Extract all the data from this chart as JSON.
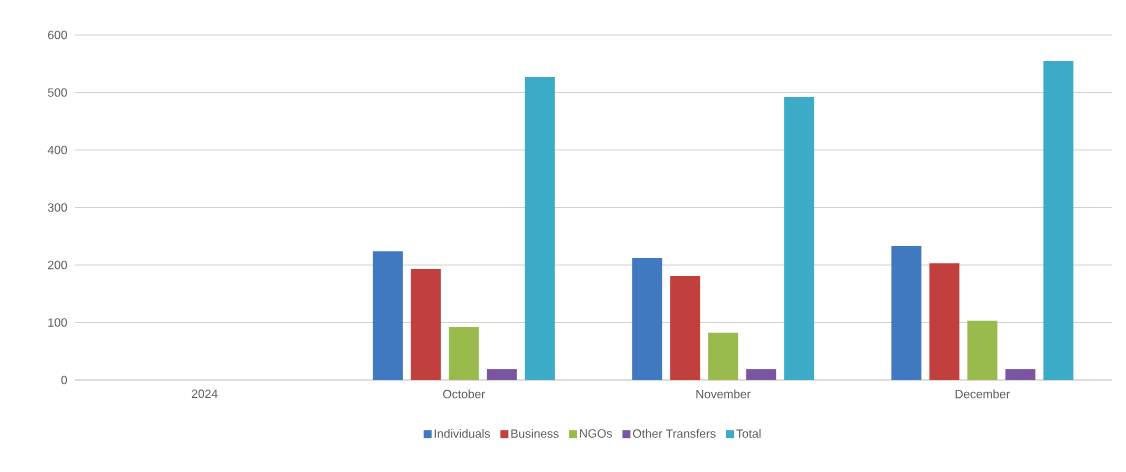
{
  "chart_data": {
    "type": "bar",
    "categories": [
      "2024",
      "October",
      "November",
      "December"
    ],
    "series": [
      {
        "name": "Individuals",
        "color": "#4079c0",
        "values": [
          null,
          224,
          212,
          233
        ]
      },
      {
        "name": "Business",
        "color": "#c13f3d",
        "values": [
          null,
          193,
          181,
          203
        ]
      },
      {
        "name": "NGOs",
        "color": "#99ba4c",
        "values": [
          null,
          92,
          82,
          103
        ]
      },
      {
        "name": "Other Transfers",
        "color": "#7b55a2",
        "values": [
          null,
          19,
          19,
          19
        ]
      },
      {
        "name": "Total",
        "color": "#3cabc8",
        "values": [
          null,
          527,
          492,
          555
        ]
      }
    ],
    "ylim": [
      0,
      600
    ],
    "yticks": [
      0,
      100,
      200,
      300,
      400,
      500,
      600
    ],
    "grid": "y",
    "legend": "bottom"
  }
}
